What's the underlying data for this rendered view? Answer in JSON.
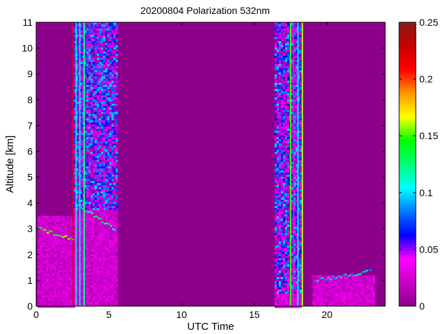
{
  "chart_data": {
    "type": "heatmap",
    "title": "20200804 Polarization 532nm",
    "xlabel": "UTC Time",
    "ylabel": "Altitude [km]",
    "xlim": [
      0,
      24
    ],
    "ylim": [
      0,
      11
    ],
    "x_ticks": [
      0,
      5,
      10,
      15,
      20
    ],
    "x_tick_labels": [
      "0",
      "5",
      "10",
      "15",
      "20"
    ],
    "y_ticks": [
      0,
      1,
      2,
      3,
      4,
      5,
      6,
      7,
      8,
      9,
      10,
      11
    ],
    "y_tick_labels": [
      "0",
      "1",
      "2",
      "3",
      "4",
      "5",
      "6",
      "7",
      "8",
      "9",
      "10",
      "11"
    ],
    "colorbar": {
      "range": [
        0,
        0.25
      ],
      "ticks": [
        0,
        0.05,
        0.1,
        0.15,
        0.2,
        0.25
      ],
      "tick_labels": [
        "0",
        "0.05",
        "0.1",
        "0.15",
        "0.2",
        "0.25"
      ],
      "colormap": [
        "#8c008c",
        "#c800c8",
        "#ff00ff",
        "#0000ff",
        "#0078ff",
        "#00ffff",
        "#00ff78",
        "#00ff00",
        "#ffff00",
        "#ff9600",
        "#ff0000",
        "#c80000",
        "#8b1a1a"
      ]
    },
    "background_value": 0.0,
    "regions": [
      {
        "x": [
          0.1,
          2.6
        ],
        "y": [
          0,
          3.5
        ],
        "value": 0.025,
        "noise": 0.012
      },
      {
        "x": [
          2.6,
          5.5
        ],
        "y": [
          0,
          3.8
        ],
        "value": 0.025,
        "noise": 0.012
      },
      {
        "x": [
          2.6,
          5.5
        ],
        "y": [
          3.8,
          11
        ],
        "value": 0.05,
        "noise": 0.05
      },
      {
        "x": [
          16.4,
          18.2
        ],
        "y": [
          0,
          0.5
        ],
        "value": 0.03,
        "noise": 0.015
      },
      {
        "x": [
          16.4,
          18.2
        ],
        "y": [
          0.5,
          11
        ],
        "value": 0.05,
        "noise": 0.05
      },
      {
        "x": [
          19.0,
          23.2
        ],
        "y": [
          0,
          1.2
        ],
        "value": 0.025,
        "noise": 0.012
      }
    ],
    "vertical_lines": [
      {
        "x": 2.55,
        "value": 0.22
      },
      {
        "x": 2.75,
        "value": 0.1
      },
      {
        "x": 3.0,
        "value": 0.1
      },
      {
        "x": 3.3,
        "value": 0.12
      },
      {
        "x": 17.5,
        "value": 0.15
      },
      {
        "x": 17.7,
        "value": 0.04
      },
      {
        "x": 18.0,
        "value": 0.1
      },
      {
        "x": 18.3,
        "value": 0.16
      }
    ],
    "layer_features": [
      {
        "x": [
          0.2,
          2.5
        ],
        "y": [
          3.0,
          2.6
        ],
        "value": 0.15
      },
      {
        "x": [
          2.7,
          5.4
        ],
        "y": [
          3.95,
          3.0
        ],
        "value": 0.12
      },
      {
        "x": [
          19.2,
          23.0
        ],
        "y": [
          1.0,
          1.35
        ],
        "value": 0.1
      }
    ]
  }
}
